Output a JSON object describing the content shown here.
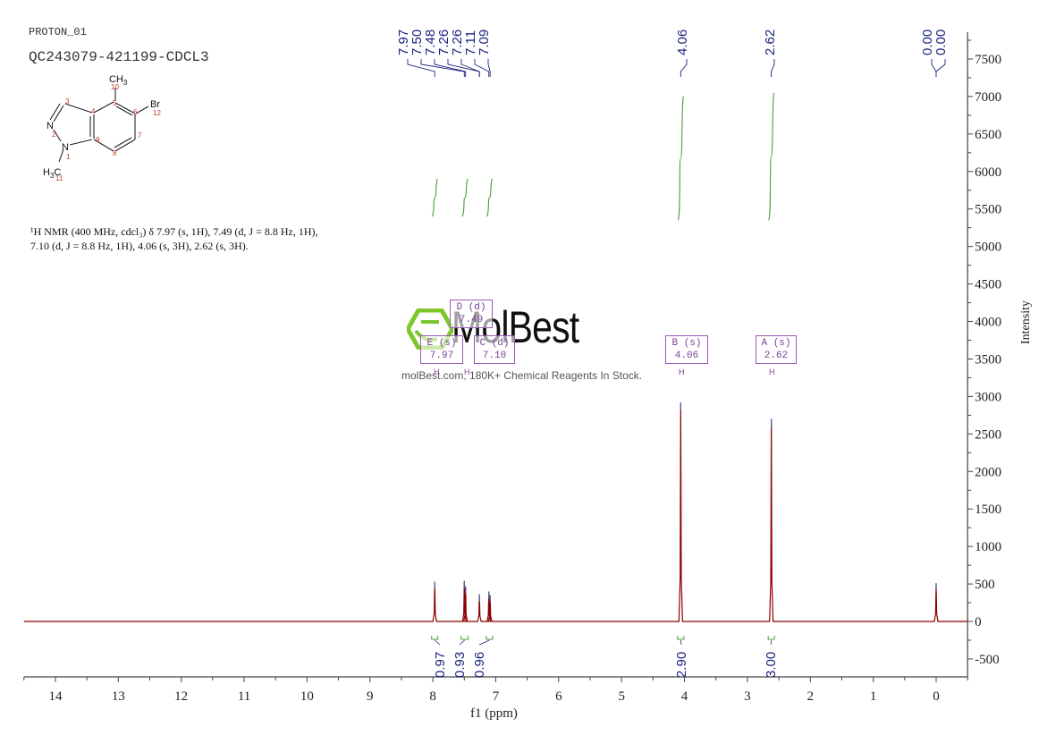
{
  "header": {
    "experiment": "PROTON_01",
    "sample_id": "QC243079-421199-CDCL3"
  },
  "structure": {
    "substituents": [
      "CH3",
      "Br",
      "H3C"
    ],
    "atom_numbers": [
      "1",
      "2",
      "3",
      "4",
      "5",
      "6",
      "7",
      "8",
      "9",
      "10",
      "11",
      "12"
    ],
    "atoms": [
      "N",
      "N"
    ]
  },
  "description": {
    "line1": "¹H NMR (400 MHz, cdcl₃) δ 7.97 (s, 1H), 7.49 (d, J = 8.8 Hz, 1H),",
    "line2": "7.10 (d, J = 8.8 Hz, 1H), 4.06 (s, 3H), 2.62 (s, 3H)."
  },
  "watermark": {
    "brand": "MolBest",
    "tagline": "molBest.com, 180K+ Chemical Reagents In Stock."
  },
  "multiplets": [
    {
      "id": "E",
      "type": "s",
      "shift": "7.97"
    },
    {
      "id": "D",
      "type": "d",
      "shift": "7.49"
    },
    {
      "id": "C",
      "type": "d",
      "shift": "7.10"
    },
    {
      "id": "B",
      "type": "s",
      "shift": "4.06"
    },
    {
      "id": "A",
      "type": "s",
      "shift": "2.62"
    }
  ],
  "chart_data": {
    "type": "line",
    "title": "QC243079-421199-CDCL3",
    "subtitle": "PROTON_01",
    "xlabel": "f1 (ppm)",
    "ylabel": "Intensity",
    "xlim": [
      14.5,
      -0.5
    ],
    "ylim": [
      -750,
      7850
    ],
    "x_reversed": true,
    "x_ticks": [
      14,
      13,
      12,
      11,
      10,
      9,
      8,
      7,
      6,
      5,
      4,
      3,
      2,
      1,
      0
    ],
    "y_ticks": [
      -500,
      0,
      500,
      1000,
      1500,
      2000,
      2500,
      3000,
      3500,
      4000,
      4500,
      5000,
      5500,
      6000,
      6500,
      7000,
      7500
    ],
    "grid": false,
    "line_color": "#8b0000",
    "peak_labels": [
      "7.97",
      "7.50",
      "7.48",
      "7.26",
      "7.26",
      "7.11",
      "7.09",
      "4.06",
      "2.62",
      "0.00",
      "0.00"
    ],
    "peaks": [
      {
        "ppm": 7.97,
        "intensity": 530
      },
      {
        "ppm": 7.5,
        "intensity": 540
      },
      {
        "ppm": 7.48,
        "intensity": 470
      },
      {
        "ppm": 7.26,
        "intensity": 360
      },
      {
        "ppm": 7.11,
        "intensity": 400
      },
      {
        "ppm": 7.09,
        "intensity": 350
      },
      {
        "ppm": 4.06,
        "intensity": 2920
      },
      {
        "ppm": 2.62,
        "intensity": 2700
      },
      {
        "ppm": 0.0,
        "intensity": 510
      }
    ],
    "integrals": [
      {
        "range": [
          8.02,
          7.92
        ],
        "value": "0.97"
      },
      {
        "range": [
          7.55,
          7.44
        ],
        "value": "0.93"
      },
      {
        "range": [
          7.15,
          7.05
        ],
        "value": "0.96"
      },
      {
        "range": [
          4.11,
          4.01
        ],
        "value": "2.90"
      },
      {
        "range": [
          2.67,
          2.57
        ],
        "value": "3.00"
      }
    ],
    "integral_curves": [
      {
        "ppm": 7.97,
        "y_bottom": 5400,
        "y_top": 5900
      },
      {
        "ppm": 7.49,
        "y_bottom": 5400,
        "y_top": 5900
      },
      {
        "ppm": 7.1,
        "y_bottom": 5400,
        "y_top": 5900
      },
      {
        "ppm": 4.06,
        "y_bottom": 5350,
        "y_top": 7000
      },
      {
        "ppm": 2.62,
        "y_bottom": 5350,
        "y_top": 7050
      }
    ]
  }
}
